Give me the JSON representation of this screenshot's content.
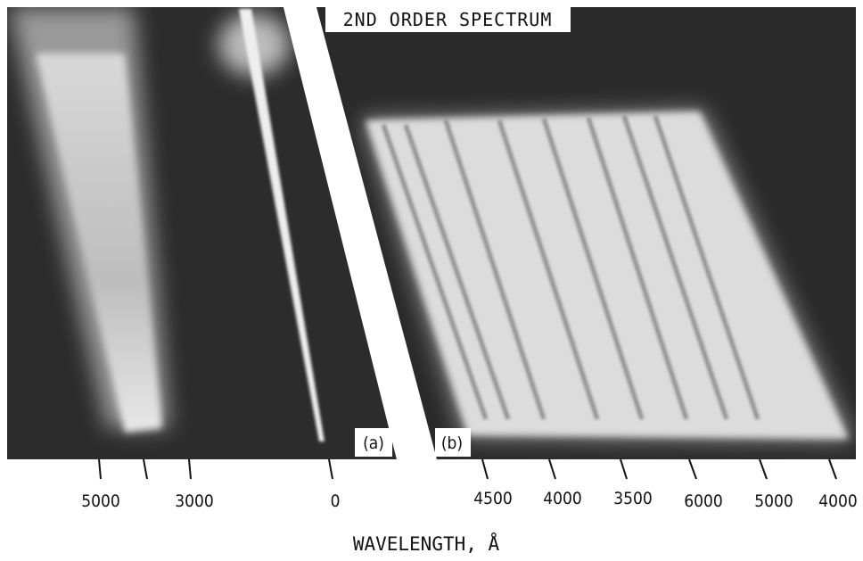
{
  "title": "2ND ORDER SPECTRUM",
  "panel_a": {
    "label": "(a)",
    "tick_labels": [
      "5000",
      "3000",
      "0"
    ]
  },
  "panel_b": {
    "label": "(b)",
    "tick_labels": [
      "4500",
      "4000",
      "3500",
      "6000",
      "5000",
      "4000"
    ]
  },
  "axis_label": "WAVELENGTH, Å"
}
